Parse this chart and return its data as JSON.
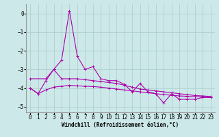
{
  "xlabel": "Windchill (Refroidissement éolien,°C)",
  "ylabel": "",
  "background_color": "#cce8e8",
  "grid_color": "#aacccc",
  "line_color": "#aa00aa",
  "xlim": [
    -0.5,
    23.5
  ],
  "ylim": [
    -5.3,
    0.5
  ],
  "yticks": [
    0,
    -1,
    -2,
    -3,
    -4,
    -5
  ],
  "xticks": [
    0,
    1,
    2,
    3,
    4,
    5,
    6,
    7,
    8,
    9,
    10,
    11,
    12,
    13,
    14,
    15,
    16,
    17,
    18,
    19,
    20,
    21,
    22,
    23
  ],
  "spiky_x": [
    0,
    1,
    2,
    3,
    4,
    5,
    6,
    7,
    8,
    9,
    10,
    11,
    12,
    13,
    14,
    15,
    16,
    17,
    18,
    19,
    20,
    21,
    22,
    23
  ],
  "spiky_y": [
    -4.0,
    -4.3,
    -3.6,
    -3.0,
    -2.5,
    0.15,
    -2.3,
    -3.0,
    -2.85,
    -3.5,
    -3.6,
    -3.6,
    -3.8,
    -4.2,
    -3.75,
    -4.2,
    -4.3,
    -4.8,
    -4.3,
    -4.6,
    -4.6,
    -4.6,
    -4.5,
    -4.5
  ],
  "upper_x": [
    0,
    2,
    3,
    4,
    5,
    6,
    7,
    8,
    9,
    10,
    11,
    12,
    13,
    14,
    15,
    16,
    17,
    18,
    19,
    20,
    21,
    22,
    23
  ],
  "upper_y": [
    -3.5,
    -3.5,
    -3.0,
    -3.5,
    -3.5,
    -3.5,
    -3.55,
    -3.6,
    -3.65,
    -3.7,
    -3.75,
    -3.85,
    -3.95,
    -4.05,
    -4.1,
    -4.15,
    -4.2,
    -4.25,
    -4.3,
    -4.35,
    -4.4,
    -4.42,
    -4.45
  ],
  "lower_x": [
    0,
    1,
    2,
    3,
    4,
    5,
    6,
    7,
    8,
    9,
    10,
    11,
    12,
    13,
    14,
    15,
    16,
    17,
    18,
    19,
    20,
    21,
    22,
    23
  ],
  "lower_y": [
    -4.0,
    -4.3,
    -4.1,
    -3.95,
    -3.9,
    -3.85,
    -3.88,
    -3.9,
    -3.92,
    -3.95,
    -4.0,
    -4.05,
    -4.1,
    -4.15,
    -4.2,
    -4.25,
    -4.3,
    -4.35,
    -4.38,
    -4.42,
    -4.44,
    -4.46,
    -4.48,
    -4.5
  ],
  "marker_size": 2.5,
  "line_width": 0.8,
  "label_fontsize": 5.5,
  "tick_fontsize": 5.5
}
